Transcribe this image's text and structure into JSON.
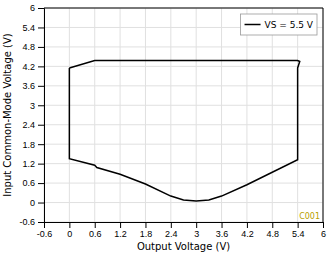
{
  "chart_data": {
    "type": "line",
    "xlabel": "Output Voltage (V)",
    "ylabel": "Input Common-Mode Voltage (V)",
    "x": [
      0.0,
      0.0,
      0.6,
      0.65,
      1.2,
      1.8,
      2.4,
      2.7,
      3.0,
      3.3,
      3.6,
      4.2,
      5.4,
      5.4,
      5.45,
      5.4,
      4.2,
      3.0,
      2.7,
      2.5,
      2.4,
      1.8,
      1.2,
      0.65,
      0.6,
      0.0,
      0.0
    ],
    "series": [
      {
        "name": "VS = 5.5 V",
        "color": "#000000",
        "values": [
          4.15,
          1.35,
          1.15,
          1.08,
          0.87,
          0.57,
          0.2,
          0.08,
          0.05,
          0.08,
          0.2,
          0.55,
          1.32,
          4.15,
          4.35,
          4.38,
          4.38,
          4.38,
          4.38,
          4.38,
          4.38,
          4.38,
          4.38,
          4.38,
          4.38,
          4.15,
          4.15
        ]
      }
    ],
    "xlim": [
      -0.6,
      6.0
    ],
    "ylim": [
      -0.6,
      6.0
    ],
    "xticks": [
      -0.6,
      0,
      0.6,
      1.2,
      1.8,
      2.4,
      3.0,
      3.6,
      4.2,
      4.8,
      5.4,
      6.0
    ],
    "yticks": [
      -0.6,
      0,
      0.6,
      1.2,
      1.8,
      2.4,
      3.0,
      3.6,
      4.2,
      4.8,
      5.4,
      6.0
    ],
    "grid": true,
    "legend": "upper right",
    "annotations": [
      {
        "text": "C001",
        "color": "#b8a000"
      }
    ]
  }
}
